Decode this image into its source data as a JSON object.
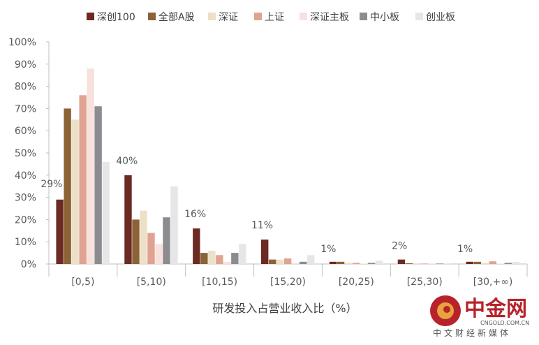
{
  "chart_data": {
    "type": "bar",
    "xlabel": "研发投入占营业收入比（%）",
    "ylabel": "",
    "ylim": [
      0,
      100
    ],
    "yticks": [
      "0%",
      "10%",
      "20%",
      "30%",
      "40%",
      "50%",
      "60%",
      "70%",
      "80%",
      "90%",
      "100%"
    ],
    "categories": [
      "[0,5)",
      "[5,10)",
      "[10,15)",
      "[15,20)",
      "[20,25)",
      "[25,30)",
      "[30,+∞)"
    ],
    "legend_position": "top",
    "grid": false,
    "series": [
      {
        "name": "深创100",
        "color": "#6b2a22",
        "values": [
          29,
          40,
          16,
          11,
          1,
          2,
          1
        ]
      },
      {
        "name": "全部A股",
        "color": "#8b6336",
        "values": [
          70,
          20,
          5,
          2,
          1,
          0.3,
          1
        ]
      },
      {
        "name": "深证",
        "color": "#ede0c8",
        "values": [
          65,
          24,
          6,
          2,
          0.5,
          0.3,
          0.5
        ]
      },
      {
        "name": "上证",
        "color": "#e0a391",
        "values": [
          76,
          14,
          4,
          2.5,
          0.5,
          0.2,
          1.2
        ]
      },
      {
        "name": "深证主板",
        "color": "#f7e1dd",
        "values": [
          88,
          9,
          1,
          0.5,
          0.2,
          0.1,
          0.2
        ]
      },
      {
        "name": "中小板",
        "color": "#8c8c90",
        "values": [
          71,
          21,
          5,
          1,
          0.5,
          0.2,
          0.5
        ]
      },
      {
        "name": "创业板",
        "color": "#e6e6e8",
        "values": [
          46,
          35,
          9,
          4,
          1.5,
          0.3,
          1
        ]
      }
    ],
    "annotations": [
      "29%",
      "40%",
      "16%",
      "11%",
      "1%",
      "2%",
      "1%"
    ]
  },
  "watermark": {
    "brand": "中金网",
    "url": "CNGOLD.COM.CN",
    "tagline": "中文财经新媒体",
    "colors": {
      "primary": "#b8232b",
      "accent": "#e8a33d"
    }
  }
}
